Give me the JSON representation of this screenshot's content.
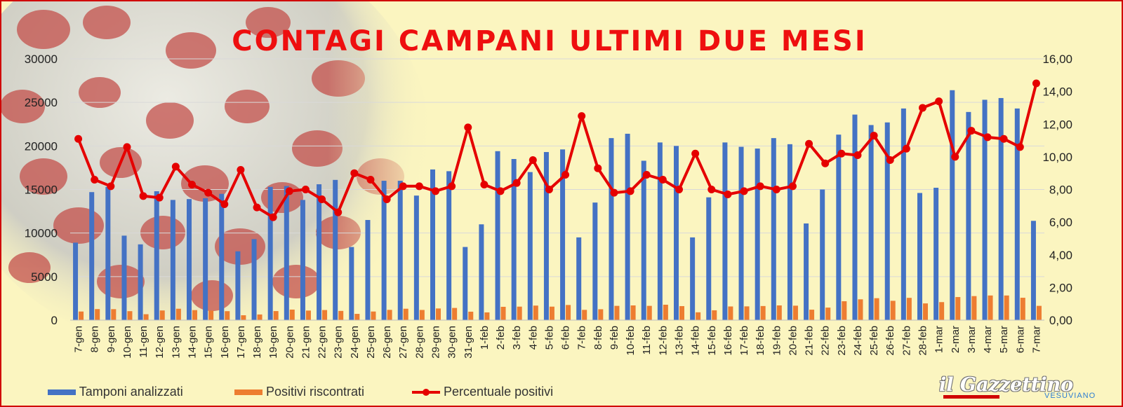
{
  "chart_data": {
    "type": "bar",
    "title": "CONTAGI CAMPANI ULTIMI DUE MESI",
    "categories": [
      "7-gen",
      "8-gen",
      "9-gen",
      "10-gen",
      "11-gen",
      "12-gen",
      "13-gen",
      "14-gen",
      "15-gen",
      "16-gen",
      "17-gen",
      "18-gen",
      "19-gen",
      "20-gen",
      "21-gen",
      "22-gen",
      "23-gen",
      "24-gen",
      "25-gen",
      "26-gen",
      "27-gen",
      "28-gen",
      "29-gen",
      "30-gen",
      "31-gen",
      "1-feb",
      "2-feb",
      "3-feb",
      "4-feb",
      "5-feb",
      "6-feb",
      "7-feb",
      "8-feb",
      "9-feb",
      "10-feb",
      "11-feb",
      "12-feb",
      "13-feb",
      "14-feb",
      "15-feb",
      "16-feb",
      "17-feb",
      "18-feb",
      "19-feb",
      "20-feb",
      "21-feb",
      "22-feb",
      "23-feb",
      "24-feb",
      "25-feb",
      "26-feb",
      "27-feb",
      "28-feb",
      "1-mar",
      "2-mar",
      "3-mar",
      "4-mar",
      "5-mar",
      "6-mar",
      "7-mar"
    ],
    "series": [
      {
        "name": "Tamponi analizzati",
        "axis": "left",
        "values": [
          8900,
          14700,
          15300,
          9700,
          8700,
          14800,
          13800,
          13900,
          14000,
          14500,
          7900,
          9300,
          15300,
          15400,
          13800,
          15600,
          16100,
          8400,
          11500,
          16000,
          16000,
          14300,
          17300,
          17100,
          8400,
          11000,
          19400,
          18500,
          17000,
          19300,
          19600,
          9500,
          13500,
          20900,
          21400,
          18300,
          20400,
          20000,
          9500,
          14100,
          20400,
          19900,
          19700,
          20900,
          20200,
          11100,
          15000,
          21300,
          23600,
          22400,
          22700,
          24300,
          14600,
          15200,
          26400,
          23900,
          25300,
          25500,
          24300,
          11400
        ]
      },
      {
        "name": "Positivi riscontrati",
        "axis": "left",
        "values": [
          990,
          1270,
          1260,
          1030,
          680,
          1110,
          1310,
          1150,
          1100,
          1030,
          560,
          650,
          1040,
          1210,
          1100,
          1160,
          1060,
          720,
          990,
          1180,
          1310,
          1170,
          1340,
          1400,
          970,
          890,
          1530,
          1550,
          1670,
          1550,
          1740,
          1180,
          1250,
          1640,
          1690,
          1640,
          1770,
          1610,
          900,
          1130,
          1570,
          1580,
          1620,
          1690,
          1660,
          1200,
          1440,
          2170,
          2390,
          2520,
          2220,
          2560,
          1920,
          2070,
          2650,
          2760,
          2830,
          2830,
          2570,
          1640
        ]
      },
      {
        "name": "Percentuale positivi",
        "type": "line",
        "axis": "right",
        "values": [
          11.1,
          8.6,
          8.2,
          10.6,
          7.6,
          7.5,
          9.4,
          8.3,
          7.8,
          7.1,
          9.2,
          6.9,
          6.3,
          7.9,
          8.0,
          7.4,
          6.6,
          9.0,
          8.6,
          7.4,
          8.2,
          8.2,
          7.9,
          8.2,
          11.8,
          8.3,
          7.9,
          8.4,
          9.8,
          8.0,
          8.9,
          12.5,
          9.3,
          7.8,
          7.9,
          8.9,
          8.6,
          8.0,
          10.2,
          8.0,
          7.7,
          7.9,
          8.2,
          8.0,
          8.2,
          10.8,
          9.6,
          10.2,
          10.1,
          11.3,
          9.8,
          10.5,
          13.0,
          13.4,
          10.0,
          11.6,
          11.2,
          11.1,
          10.6,
          14.5
        ]
      }
    ],
    "y_left": {
      "ylim": [
        0,
        30000
      ],
      "ticks": [
        "0",
        "5000",
        "10000",
        "15000",
        "20000",
        "25000",
        "30000"
      ]
    },
    "y_right": {
      "ylim": [
        0,
        16
      ],
      "ticks": [
        "0,00",
        "2,00",
        "4,00",
        "6,00",
        "8,00",
        "10,00",
        "12,00",
        "14,00",
        "16,00"
      ]
    },
    "grid": true,
    "legend_position": "bottom-left"
  },
  "colors": {
    "bars_tamponi": "#4472c4",
    "bars_positivi": "#ed7d31",
    "line_percentuale": "#e50000",
    "title": "#ee0f0f",
    "background": "#fbf5c0",
    "border": "#d00000"
  },
  "legend": [
    {
      "label": "Tamponi analizzati"
    },
    {
      "label": "Positivi riscontrati"
    },
    {
      "label": "Percentuale positivi"
    }
  ],
  "logo": {
    "main": "il Gazzettino",
    "sub": "VESUVIANO"
  }
}
